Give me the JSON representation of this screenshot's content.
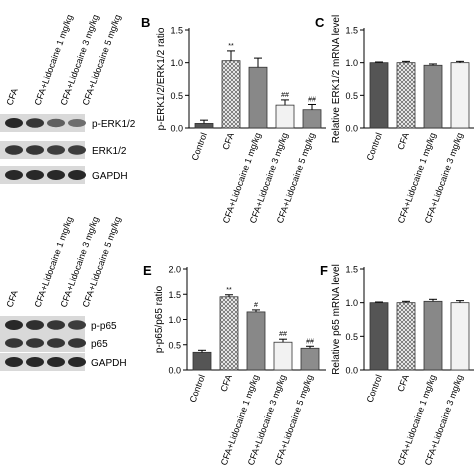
{
  "blots": [
    {
      "lanes": [
        "CFA",
        "CFA+Lidocaine 1 mg/kg",
        "CFA+Lidocaine 3 mg/kg",
        "CFA+Lidocaine 5 mg/kg"
      ],
      "bands": [
        "p-ERK1/2",
        "ERK1/2",
        "GAPDH"
      ],
      "band_intensity": [
        [
          1.0,
          0.9,
          0.6,
          0.5
        ],
        [
          0.9,
          0.9,
          0.85,
          0.85
        ],
        [
          1.0,
          1.0,
          1.0,
          1.0
        ]
      ]
    },
    {
      "lanes": [
        "CFA",
        "CFA+Lidocaine 1 mg/kg",
        "CFA+Lidocaine 3 mg/kg",
        "CFA+Lidocaine 5 mg/kg"
      ],
      "bands": [
        "p-p65",
        "p65",
        "GAPDH"
      ],
      "band_intensity": [
        [
          1.0,
          0.95,
          0.9,
          0.85
        ],
        [
          0.9,
          0.9,
          0.9,
          0.9
        ],
        [
          1.0,
          1.0,
          1.0,
          1.0
        ]
      ]
    }
  ],
  "chart_data": [
    {
      "panel": "B",
      "type": "bar",
      "categories": [
        "Control",
        "CFA",
        "CFA+Lidocaine 1 mg/kg",
        "CFA+Lidocaine 3 mg/kg",
        "CFA+Lidocaine 5 mg/kg"
      ],
      "values": [
        0.07,
        1.03,
        0.93,
        0.35,
        0.28
      ],
      "errors": [
        0.05,
        0.15,
        0.14,
        0.08,
        0.08
      ],
      "significance": [
        "",
        "**",
        "",
        "##",
        "##"
      ],
      "ylabel": "p-ERK1/2/ERK1/2 ratio",
      "ylim": [
        0,
        1.5
      ],
      "yticks": [
        "0.0",
        "0.5",
        "1.0",
        "1.5"
      ],
      "bar_fills": [
        "#555555",
        "crosshatch",
        "#888888",
        "#f2f2f2",
        "#8c8c8c"
      ]
    },
    {
      "panel": "C",
      "type": "bar",
      "categories": [
        "Control",
        "CFA",
        "CFA+Lidocaine 1 mg/kg",
        "CFA+Lidocaine 3 mg/kg"
      ],
      "values": [
        1.0,
        1.0,
        0.96,
        1.0
      ],
      "errors": [
        0.01,
        0.02,
        0.02,
        0.02
      ],
      "ylabel": "Relative ERK1/2 mRNA level",
      "ylim": [
        0,
        1.5
      ],
      "yticks": [
        "0.0",
        "0.5",
        "1.0",
        "1.5"
      ],
      "bar_fills": [
        "#555555",
        "crosshatch",
        "#888888",
        "#f2f2f2"
      ]
    },
    {
      "panel": "E",
      "type": "bar",
      "categories": [
        "Control",
        "CFA",
        "CFA+Lidocaine 1 mg/kg",
        "CFA+Lidocaine 3 mg/kg",
        "CFA+Lidocaine 5 mg/kg"
      ],
      "values": [
        0.35,
        1.45,
        1.15,
        0.55,
        0.43
      ],
      "errors": [
        0.04,
        0.04,
        0.04,
        0.06,
        0.04
      ],
      "significance": [
        "",
        "**",
        "#",
        "##",
        "##"
      ],
      "ylabel": "p-p65/p65 ratio",
      "ylim": [
        0,
        2.0
      ],
      "yticks": [
        "0.0",
        "0.5",
        "1.0",
        "1.5",
        "2.0"
      ],
      "bar_fills": [
        "#555555",
        "crosshatch",
        "#888888",
        "#f2f2f2",
        "#8c8c8c"
      ]
    },
    {
      "panel": "F",
      "type": "bar",
      "categories": [
        "Control",
        "CFA",
        "CFA+Lidocaine 1 mg/kg",
        "CFA+Lidocaine 3 mg/kg"
      ],
      "values": [
        1.0,
        1.0,
        1.02,
        1.0
      ],
      "errors": [
        0.01,
        0.02,
        0.03,
        0.03
      ],
      "ylabel": "Relative p65 mRNA level",
      "ylim": [
        0,
        1.5
      ],
      "yticks": [
        "0.0",
        "0.5",
        "1.0",
        "1.5"
      ],
      "bar_fills": [
        "#555555",
        "crosshatch",
        "#888888",
        "#f2f2f2"
      ]
    }
  ]
}
